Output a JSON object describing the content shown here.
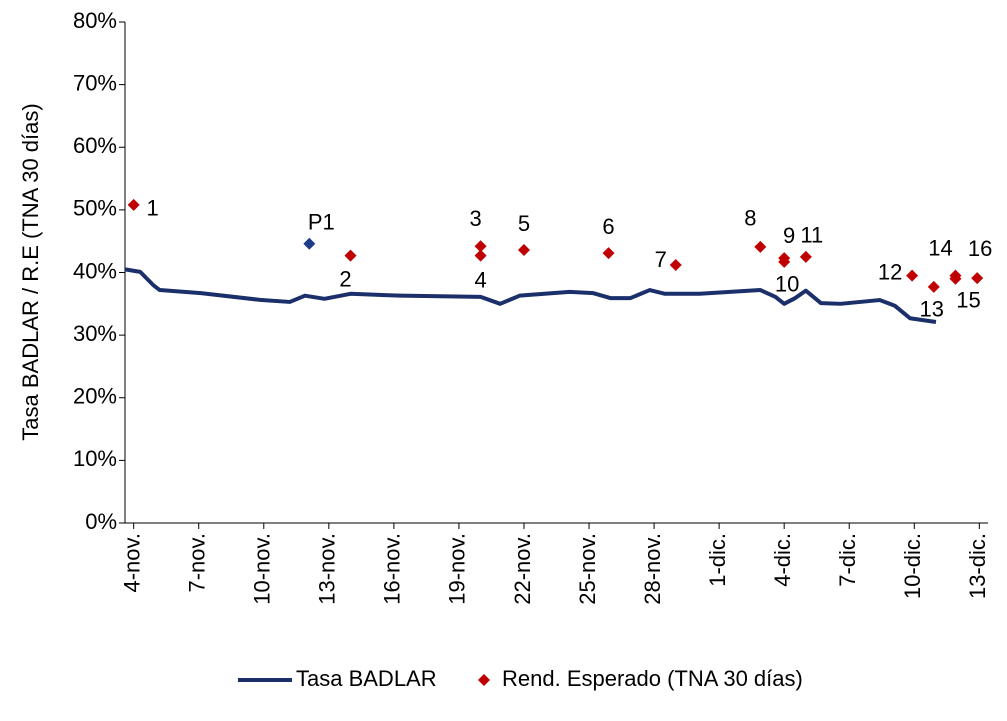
{
  "chart_data": {
    "type": "line-scatter",
    "y_label": "Tasa BADLAR / R.E (TNA 30 días)",
    "ylim": [
      0,
      80
    ],
    "yticks": [
      {
        "value": 0,
        "label": "0%"
      },
      {
        "value": 10,
        "label": "10%"
      },
      {
        "value": 20,
        "label": "20%"
      },
      {
        "value": 30,
        "label": "30%"
      },
      {
        "value": 40,
        "label": "40%"
      },
      {
        "value": 50,
        "label": "50%"
      },
      {
        "value": 60,
        "label": "60%"
      },
      {
        "value": 70,
        "label": "70%"
      },
      {
        "value": 80,
        "label": "80%"
      }
    ],
    "xlim": [
      3.6,
      43.4
    ],
    "xticks": [
      {
        "value": 4,
        "label": "4-nov."
      },
      {
        "value": 7,
        "label": "7-nov."
      },
      {
        "value": 10,
        "label": "10-nov."
      },
      {
        "value": 13,
        "label": "13-nov."
      },
      {
        "value": 16,
        "label": "16-nov."
      },
      {
        "value": 19,
        "label": "19-nov."
      },
      {
        "value": 22,
        "label": "22-nov."
      },
      {
        "value": 25,
        "label": "25-nov."
      },
      {
        "value": 28,
        "label": "28-nov."
      },
      {
        "value": 31,
        "label": "1-dic."
      },
      {
        "value": 34,
        "label": "4-dic."
      },
      {
        "value": 37,
        "label": "7-dic."
      },
      {
        "value": 40,
        "label": "10-dic."
      },
      {
        "value": 43,
        "label": "13-dic."
      }
    ],
    "series": [
      {
        "name": "Tasa BADLAR",
        "type": "line",
        "color": "#1b2f6b",
        "x": [
          3.6,
          4.3,
          4.9,
          5.2,
          7.1,
          9.9,
          11.2,
          11.9,
          12.8,
          14.0,
          16.3,
          20.0,
          20.9,
          21.8,
          24.1,
          25.2,
          26.0,
          26.9,
          27.8,
          28.5,
          30.1,
          32.9,
          33.6,
          34.0,
          34.5,
          35.0,
          35.7,
          36.6,
          38.4,
          39.1,
          39.8,
          41.0
        ],
        "values": [
          40.5,
          40.1,
          38.0,
          37.2,
          36.7,
          35.6,
          35.3,
          36.3,
          35.8,
          36.6,
          36.3,
          36.1,
          35.0,
          36.3,
          36.9,
          36.7,
          35.9,
          35.9,
          37.2,
          36.6,
          36.6,
          37.2,
          36.1,
          35.0,
          35.9,
          37.1,
          35.1,
          35.0,
          35.6,
          34.7,
          32.7,
          32.1
        ]
      },
      {
        "name": "Rend. Esperado (TNA 30 días)",
        "type": "scatter",
        "color": "#c00000",
        "point_colors": [
          "#c00000",
          "#1f3c88",
          "#c00000",
          "#c00000",
          "#c00000",
          "#c00000",
          "#c00000",
          "#c00000",
          "#c00000",
          "#c00000",
          "#c00000",
          "#c00000",
          "#c00000",
          "#c00000",
          "#c00000",
          "#c00000",
          "#c00000"
        ],
        "labels": [
          "1",
          "P1",
          "2",
          "3",
          "4",
          "5",
          "6",
          "7",
          "8",
          "9",
          "10",
          "11",
          "12",
          "13",
          "14",
          "15",
          "16"
        ],
        "x": [
          4.0,
          12.1,
          14.0,
          20.0,
          20.0,
          22.0,
          25.9,
          29.0,
          32.9,
          34.0,
          34.0,
          35.0,
          39.9,
          40.9,
          41.9,
          41.9,
          42.9
        ],
        "values": [
          50.8,
          44.6,
          42.7,
          44.2,
          42.7,
          43.6,
          43.1,
          41.2,
          44.1,
          42.3,
          41.7,
          42.5,
          39.5,
          37.7,
          39.5,
          39.0,
          39.1
        ]
      }
    ]
  }
}
